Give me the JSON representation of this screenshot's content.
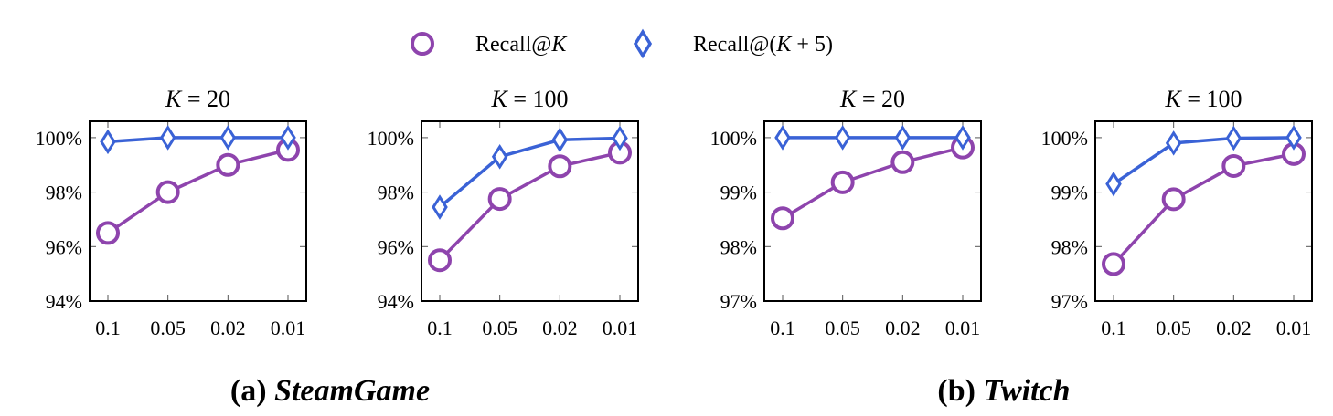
{
  "legend": {
    "items": [
      {
        "label_pre": "Recall@",
        "label_var": "K",
        "label_post": "",
        "marker": "circle",
        "color": "#8e44ad"
      },
      {
        "label_pre": "Recall@(",
        "label_var": "K",
        "label_post": " + 5)",
        "marker": "diamond",
        "color": "#3a62d6"
      }
    ]
  },
  "captions": [
    {
      "prefix": "(a) ",
      "name": "SteamGame"
    },
    {
      "prefix": "(b) ",
      "name": "Twitch"
    }
  ],
  "chart_data": [
    {
      "type": "line",
      "title_var": "K",
      "title_rest": " = 20",
      "categories": [
        "0.1",
        "0.05",
        "0.02",
        "0.01"
      ],
      "ylim": [
        94,
        100.6
      ],
      "yticks": [
        94,
        96,
        98,
        100
      ],
      "ytick_labels": [
        "94%",
        "96%",
        "98%",
        "100%"
      ],
      "series": [
        {
          "values": [
            96.5,
            98.0,
            99.0,
            99.55
          ]
        },
        {
          "values": [
            99.85,
            100.0,
            100.0,
            100.0
          ]
        }
      ]
    },
    {
      "type": "line",
      "title_var": "K",
      "title_rest": " = 100",
      "categories": [
        "0.1",
        "0.05",
        "0.02",
        "0.01"
      ],
      "ylim": [
        94,
        100.6
      ],
      "yticks": [
        94,
        96,
        98,
        100
      ],
      "ytick_labels": [
        "94%",
        "96%",
        "98%",
        "100%"
      ],
      "series": [
        {
          "values": [
            95.5,
            97.75,
            98.95,
            99.45
          ]
        },
        {
          "values": [
            97.45,
            99.3,
            99.92,
            99.98
          ]
        }
      ]
    },
    {
      "type": "line",
      "title_var": "K",
      "title_rest": " = 20",
      "categories": [
        "0.1",
        "0.05",
        "0.02",
        "0.01"
      ],
      "ylim": [
        97,
        100.3
      ],
      "yticks": [
        97,
        98,
        99,
        100
      ],
      "ytick_labels": [
        "97%",
        "98%",
        "99%",
        "100%"
      ],
      "series": [
        {
          "values": [
            98.52,
            99.18,
            99.55,
            99.82
          ]
        },
        {
          "values": [
            100.0,
            100.0,
            100.0,
            100.0
          ]
        }
      ]
    },
    {
      "type": "line",
      "title_var": "K",
      "title_rest": " = 100",
      "categories": [
        "0.1",
        "0.05",
        "0.02",
        "0.01"
      ],
      "ylim": [
        97,
        100.3
      ],
      "yticks": [
        97,
        98,
        99,
        100
      ],
      "ytick_labels": [
        "97%",
        "98%",
        "99%",
        "100%"
      ],
      "series": [
        {
          "values": [
            97.68,
            98.87,
            99.48,
            99.7
          ]
        },
        {
          "values": [
            99.15,
            99.9,
            99.99,
            100.0
          ]
        }
      ]
    }
  ]
}
